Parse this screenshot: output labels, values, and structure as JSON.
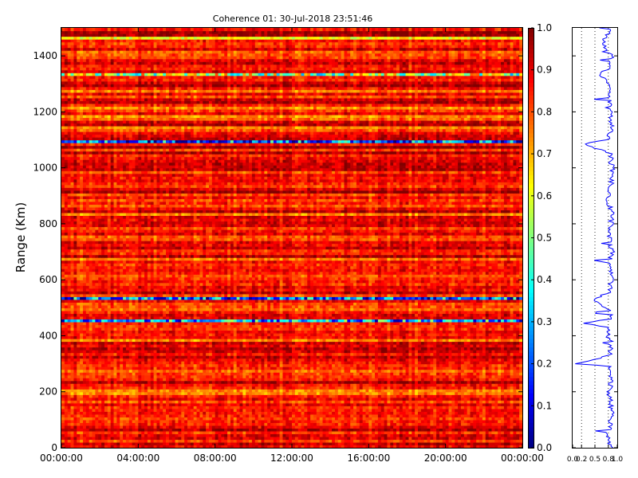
{
  "chart_data": [
    {
      "type": "heatmap",
      "title": "Coherence 01: 30-Jul-2018 23:51:46",
      "ylabel": "Range (Km)",
      "xlabel": "",
      "x_tick_labels": [
        "00:00:00",
        "04:00:00",
        "08:00:00",
        "12:00:00",
        "16:00:00",
        "20:00:00",
        "00:00:00"
      ],
      "x_ticks_hours": [
        0,
        4,
        8,
        12,
        16,
        20,
        24
      ],
      "xlim_hours": [
        0,
        24
      ],
      "y_tick_labels": [
        "0",
        "200",
        "400",
        "600",
        "800",
        "1000",
        "1200",
        "1400"
      ],
      "y_ticks": [
        0,
        200,
        400,
        600,
        800,
        1000,
        1200,
        1400
      ],
      "ylim": [
        0,
        1500
      ],
      "colormap": "jet",
      "clim": [
        0.0,
        1.0
      ],
      "colorbar_tick_labels": [
        "0.0",
        "0.1",
        "0.2",
        "0.3",
        "0.4",
        "0.5",
        "0.6",
        "0.7",
        "0.8",
        "0.9",
        "1.0"
      ],
      "colorbar_ticks": [
        0.0,
        0.1,
        0.2,
        0.3,
        0.4,
        0.5,
        0.6,
        0.7,
        0.8,
        0.9,
        1.0
      ],
      "typical_value": 0.86,
      "low_coherence_bands": [
        {
          "range_km": 445,
          "value": 0.28
        },
        {
          "range_km": 525,
          "value": 0.22
        },
        {
          "range_km": 1085,
          "value": 0.24
        },
        {
          "range_km": 1330,
          "value": 0.55
        },
        {
          "range_km": 1455,
          "value": 0.62
        }
      ]
    },
    {
      "type": "line",
      "description_axis": "mean coherence vs range",
      "x_tick_labels": [
        "0.0",
        "0.2",
        "0.5",
        "0.8",
        "1.0"
      ],
      "x_ticks": [
        0.0,
        0.2,
        0.5,
        0.8,
        1.0
      ],
      "xlim": [
        0,
        1
      ],
      "ylim": [
        0,
        1500
      ],
      "grid": "dotted vertical",
      "series": [
        {
          "range_km": [
            0,
            40,
            80,
            120,
            160,
            200,
            230,
            260,
            290,
            300,
            330,
            370,
            400,
            430,
            445,
            460,
            490,
            525,
            560,
            600,
            650,
            700,
            750,
            800,
            850,
            880,
            900,
            950,
            1000,
            1050,
            1085,
            1100,
            1150,
            1200,
            1250,
            1300,
            1330,
            1360,
            1400,
            1450,
            1500
          ],
          "coherence": [
            0.86,
            0.78,
            0.84,
            0.88,
            0.85,
            0.8,
            0.86,
            0.83,
            0.87,
            0.1,
            0.84,
            0.86,
            0.8,
            0.85,
            0.2,
            0.83,
            0.86,
            0.45,
            0.85,
            0.87,
            0.84,
            0.88,
            0.83,
            0.86,
            0.88,
            0.75,
            0.84,
            0.87,
            0.88,
            0.85,
            0.25,
            0.8,
            0.87,
            0.86,
            0.82,
            0.86,
            0.6,
            0.84,
            0.87,
            0.68,
            0.88
          ]
        }
      ]
    }
  ]
}
